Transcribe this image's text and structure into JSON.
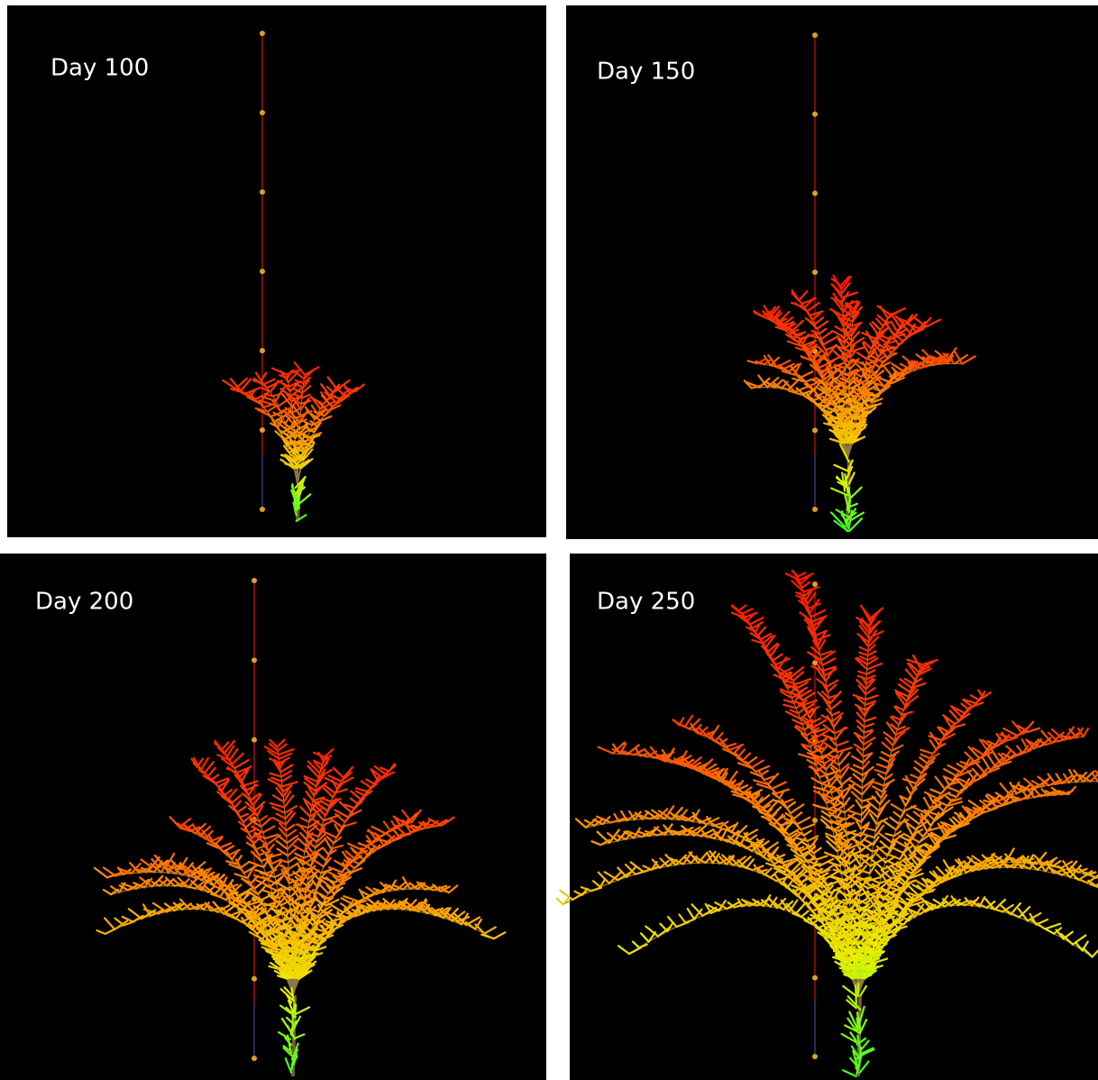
{
  "panels": [
    {
      "label": "Day 100"
    },
    {
      "label": "Day 150"
    },
    {
      "label": "Day 200"
    },
    {
      "label": "Day 250"
    }
  ]
}
